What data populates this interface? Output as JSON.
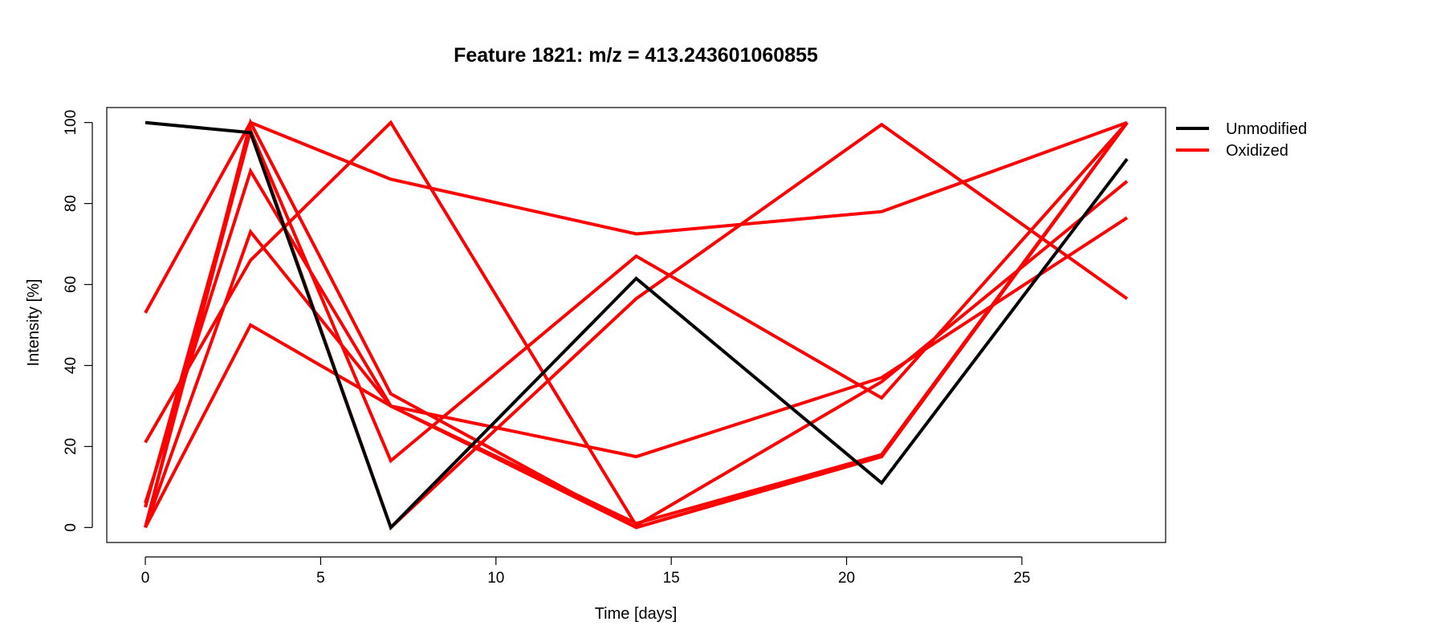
{
  "chart_data": {
    "type": "line",
    "title": "Feature 1821: m/z = 413.243601060855",
    "xlabel": "Time [days]",
    "ylabel": "Intensity [%]",
    "x": [
      0,
      3,
      7,
      14,
      21,
      28
    ],
    "xticks": [
      0,
      5,
      10,
      15,
      20,
      25
    ],
    "yticks": [
      0,
      20,
      40,
      60,
      80,
      100
    ],
    "xlim": [
      -1.1,
      29.1
    ],
    "ylim": [
      -3.7,
      103.7
    ],
    "legend_placement": "right, outside plot area (top)",
    "legend": [
      {
        "label": "Unmodified",
        "color": "#000000"
      },
      {
        "label": "Oxidized",
        "color": "#ff0000"
      }
    ],
    "colors": {
      "Unmodified": "#000000",
      "Oxidized": "#ff0000"
    },
    "series": [
      {
        "group": "Oxidized",
        "values": [
          53,
          100,
          86,
          72.5,
          78,
          100
        ]
      },
      {
        "group": "Oxidized",
        "values": [
          6,
          88,
          30,
          1,
          18,
          100
        ]
      },
      {
        "group": "Oxidized",
        "values": [
          0,
          100,
          33,
          0,
          17.5,
          100
        ]
      },
      {
        "group": "Oxidized",
        "values": [
          0,
          73,
          30,
          17.5,
          37,
          76.5
        ]
      },
      {
        "group": "Oxidized",
        "values": [
          0,
          50,
          30,
          0,
          17.5,
          100
        ]
      },
      {
        "group": "Oxidized",
        "values": [
          21,
          66,
          100,
          0.5,
          36,
          85.5
        ]
      },
      {
        "group": "Oxidized",
        "values": [
          5,
          98,
          16.5,
          67,
          32,
          100
        ]
      },
      {
        "group": "Oxidized",
        "values": [
          0,
          98,
          0,
          56.5,
          99.5,
          56.5
        ]
      },
      {
        "group": "Unmodified",
        "values": [
          100,
          97.5,
          0,
          61.5,
          11,
          91
        ]
      }
    ]
  }
}
